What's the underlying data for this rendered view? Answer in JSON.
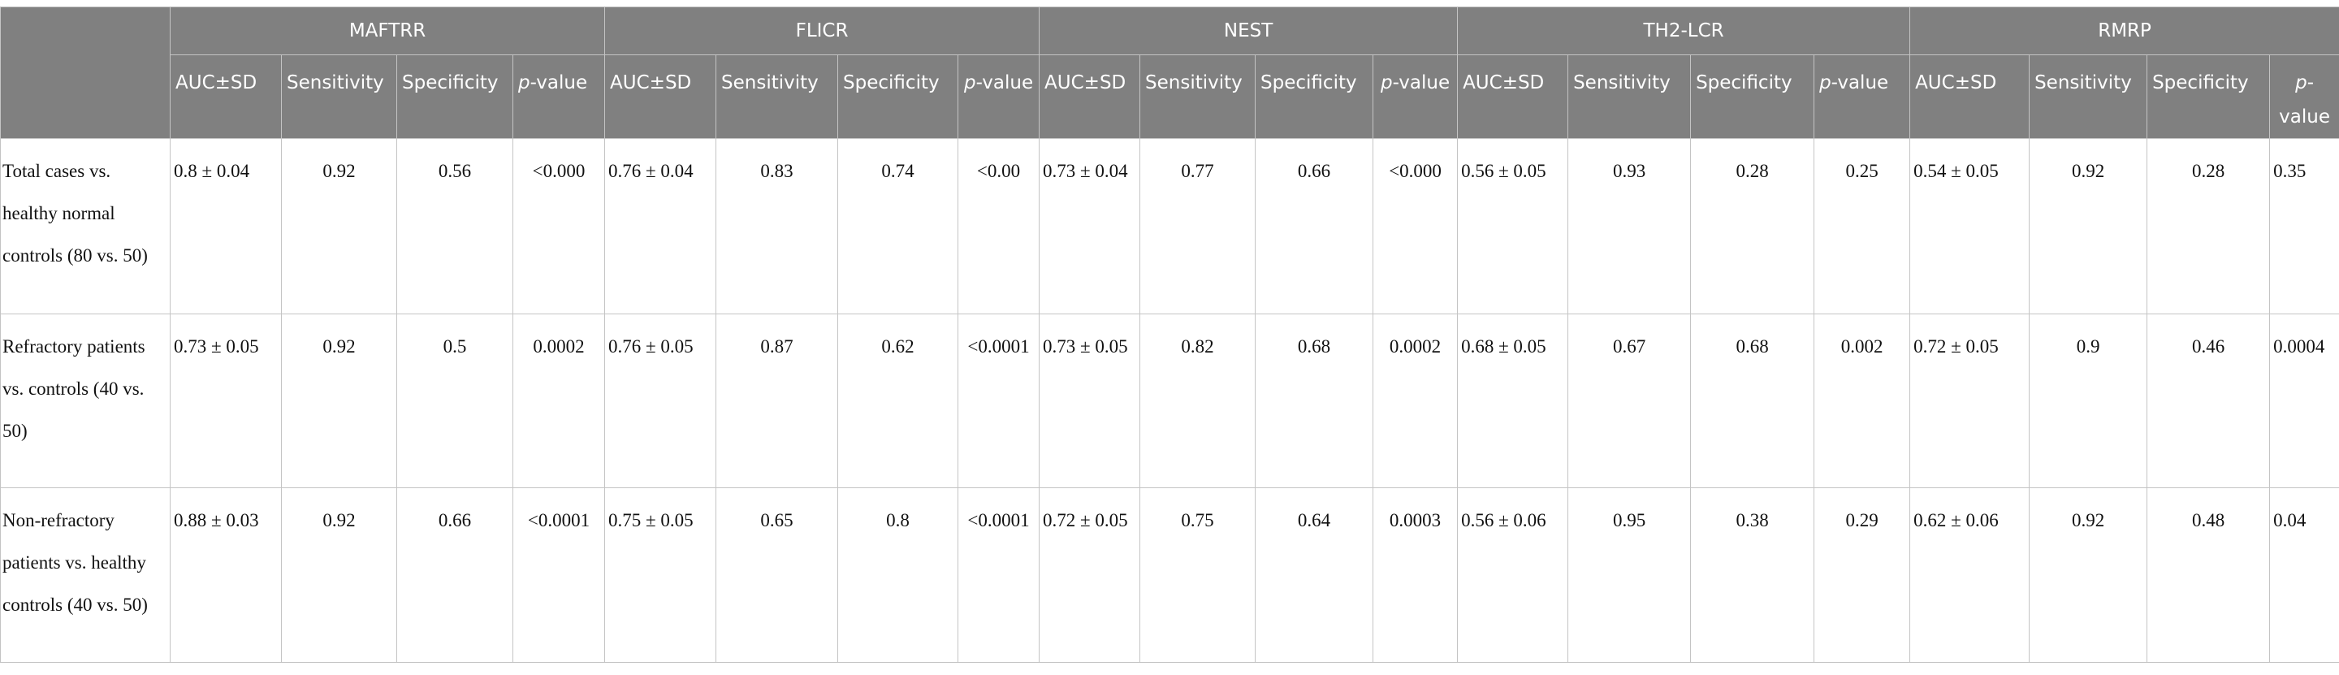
{
  "groups": [
    "MAFTRR",
    "FLICR",
    "NEST",
    "TH2-LCR",
    "RMRP"
  ],
  "subheaders": {
    "auc": "AUC±SD",
    "sensitivity": "Sensitivity",
    "specificity": "Specificity",
    "p_italic": "p",
    "p_suffix": "-value"
  },
  "rows": [
    {
      "label": "Total cases vs. healthy normal controls (80 vs. 50)",
      "cells": [
        [
          "0.8 ± 0.04",
          "0.92",
          "0.56",
          "<0.000"
        ],
        [
          "0.76 ± 0.04",
          "0.83",
          "0.74",
          "<0.00"
        ],
        [
          "0.73 ± 0.04",
          "0.77",
          "0.66",
          "<0.000"
        ],
        [
          "0.56 ± 0.05",
          "0.93",
          "0.28",
          "0.25"
        ],
        [
          "0.54 ± 0.05",
          "0.92",
          "0.28",
          "0.35"
        ]
      ]
    },
    {
      "label": "Refractory patients vs. controls (40 vs. 50)",
      "cells": [
        [
          "0.73 ± 0.05",
          "0.92",
          "0.5",
          "0.0002"
        ],
        [
          "0.76 ± 0.05",
          "0.87",
          "0.62",
          "<0.0001"
        ],
        [
          "0.73 ± 0.05",
          "0.82",
          "0.68",
          "0.0002"
        ],
        [
          "0.68 ± 0.05",
          "0.67",
          "0.68",
          "0.002"
        ],
        [
          "0.72 ± 0.05",
          "0.9",
          "0.46",
          "0.0004"
        ]
      ]
    },
    {
      "label": "Non-refractory patients vs. healthy controls (40 vs. 50)",
      "cells": [
        [
          "0.88 ± 0.03",
          "0.92",
          "0.66",
          "<0.0001"
        ],
        [
          "0.75 ± 0.05",
          "0.65",
          "0.8",
          "<0.0001"
        ],
        [
          "0.72 ± 0.05",
          "0.75",
          "0.64",
          "0.0003"
        ],
        [
          "0.56 ± 0.06",
          "0.95",
          "0.38",
          "0.29"
        ],
        [
          "0.62 ± 0.06",
          "0.92",
          "0.48",
          "0.04"
        ]
      ]
    }
  ]
}
